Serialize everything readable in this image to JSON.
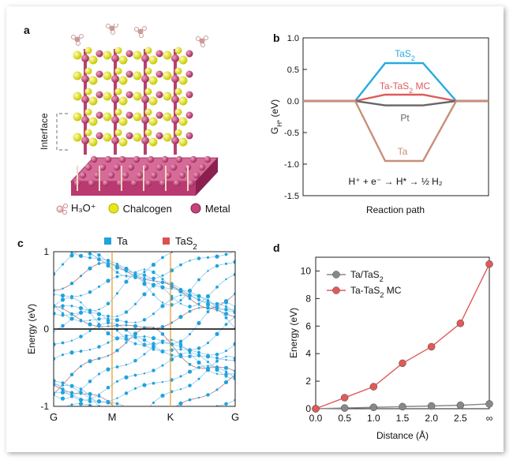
{
  "panels": {
    "a": "a",
    "b": "b",
    "c": "c",
    "d": "d"
  },
  "panel_a": {
    "interface_label": "Interface",
    "legend": [
      {
        "label": "H₃O⁺",
        "color": "#d9a0a0"
      },
      {
        "label": "Chalcogen",
        "color": "#e6e619"
      },
      {
        "label": "Metal",
        "color": "#c2457a"
      }
    ]
  },
  "chart_data": [
    {
      "type": "line",
      "panel": "b",
      "ylabel": "G_H*  (eV)",
      "xlabel": "Reaction path",
      "ylim": [
        -1.5,
        1.0
      ],
      "yticks": [
        "1.0",
        "0.5",
        "0.0",
        "-0.5",
        "-1.0",
        "-1.5"
      ],
      "annotation": "H⁺ + e⁻ → H* → ½ H₂",
      "series": [
        {
          "name": "TaS₂",
          "color": "#2aa9e0",
          "values": [
            0,
            0.6,
            0
          ]
        },
        {
          "name": "Ta-TaS₂ MC",
          "color": "#e05a5a",
          "values": [
            0,
            0.1,
            0
          ]
        },
        {
          "name": "Pt",
          "color": "#666666",
          "values": [
            0,
            -0.07,
            0
          ]
        },
        {
          "name": "Ta",
          "color": "#c89078",
          "values": [
            0,
            -0.95,
            0
          ]
        }
      ]
    },
    {
      "type": "line",
      "panel": "c",
      "ylabel": "Energy (eV)",
      "ylim": [
        -1,
        1
      ],
      "yticks": [
        "1",
        "0",
        "-1"
      ],
      "kpoints": [
        "G",
        "M",
        "K",
        "G"
      ],
      "legend": [
        {
          "name": "Ta",
          "color": "#1fa3de"
        },
        {
          "name": "TaS₂",
          "color": "#d9534f"
        }
      ]
    },
    {
      "type": "line",
      "panel": "d",
      "xlabel": "Distance (Å)",
      "ylabel": "Energy (eV)",
      "x": [
        "0.0",
        "0.5",
        "1.0",
        "1.5",
        "2.0",
        "2.5",
        "∞"
      ],
      "ylim": [
        0,
        10.5
      ],
      "yticks": [
        "0",
        "2",
        "4",
        "6",
        "8",
        "10"
      ],
      "series": [
        {
          "name": "Ta/TaS₂",
          "color": "#888888",
          "values": [
            0.0,
            0.05,
            0.1,
            0.15,
            0.2,
            0.25,
            0.35
          ]
        },
        {
          "name": "Ta-TaS₂ MC",
          "color": "#e05a5a",
          "values": [
            0.0,
            0.8,
            1.6,
            3.3,
            4.5,
            6.2,
            10.5
          ]
        }
      ]
    }
  ]
}
